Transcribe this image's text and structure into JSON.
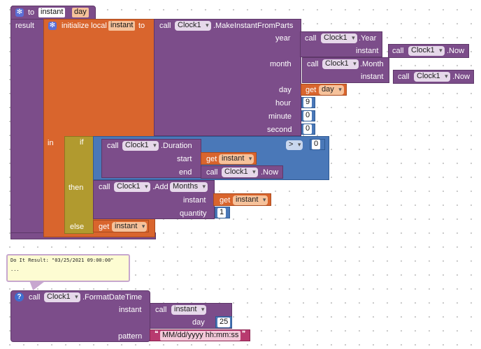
{
  "proc_def": {
    "to_label": "to",
    "name": "instant",
    "param": "day",
    "result_label": "result"
  },
  "init_local": {
    "label": "initialize local",
    "var_name": "instant",
    "to_label": "to",
    "in_label": "in"
  },
  "make_instant": {
    "call": "call",
    "component": "Clock1",
    "method": ".MakeInstantFromParts",
    "params": {
      "year": "year",
      "month": "month",
      "day": "day",
      "hour": "hour",
      "minute": "minute",
      "second": "second"
    }
  },
  "year_call": {
    "call": "call",
    "component": "Clock1",
    "method": ".Year",
    "instant_label": "instant",
    "now_call": "call",
    "now_component": "Clock1",
    "now_method": ".Now"
  },
  "month_call": {
    "call": "call",
    "component": "Clock1",
    "method": ".Month",
    "instant_label": "instant",
    "now_call": "call",
    "now_component": "Clock1",
    "now_method": ".Now"
  },
  "day_get": {
    "get": "get",
    "var": "day"
  },
  "values": {
    "hour": "9",
    "minute": "0",
    "second": "0"
  },
  "if_block": {
    "if_label": "if",
    "then_label": "then",
    "else_label": "else"
  },
  "duration": {
    "call": "call",
    "component": "Clock1",
    "method": ".Duration",
    "start_label": "start",
    "end_label": "end",
    "start_get": "get",
    "start_var": "instant",
    "end_call": "call",
    "end_component": "Clock1",
    "end_method": ".Now"
  },
  "compare": {
    "op": ">",
    "value": "0"
  },
  "add_call": {
    "call": "call",
    "component": "Clock1",
    "method": ".Add",
    "unit": "Months",
    "instant_label": "instant",
    "get": "get",
    "var": "instant",
    "quantity_label": "quantity",
    "quantity": "1"
  },
  "else_get": {
    "get": "get",
    "var": "instant"
  },
  "tooltip": {
    "line1": "Do It Result: \"03/25/2021 09:00:00\"",
    "line2": "..."
  },
  "format_call": {
    "call": "call",
    "component": "Clock1",
    "method": ".FormatDateTime",
    "instant_label": "instant",
    "pattern_label": "pattern",
    "inner_call": "call",
    "inner_proc": "instant",
    "day_label": "day",
    "day_value": "25",
    "pattern_value": "MM/dd/yyyy hh:mm:ss"
  },
  "colors": {
    "procedure": "#7c4d8a",
    "variable": "#d9652d",
    "control": "#b19a2f",
    "logic": "#4a78b8",
    "text": "#b83a6f"
  }
}
